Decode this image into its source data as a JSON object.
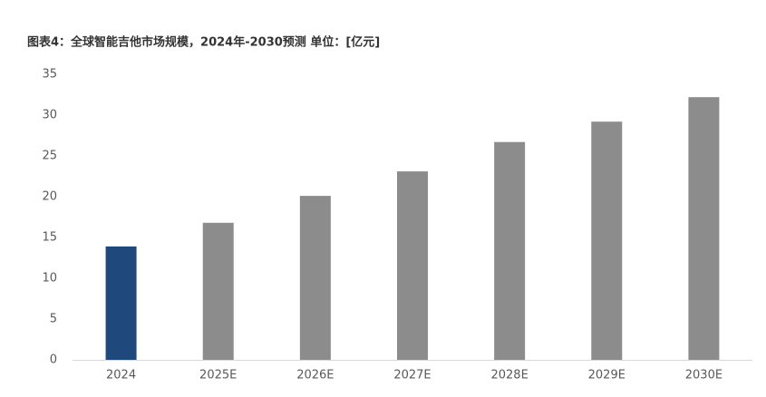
{
  "chart_data": {
    "type": "bar",
    "title": "图表4：全球智能吉他市场规模，2024年-2030预测 单位：[亿元]",
    "categories": [
      "2024",
      "2025E",
      "2026E",
      "2027E",
      "2028E",
      "2029E",
      "2030E"
    ],
    "values": [
      13.9,
      16.8,
      20.1,
      23.1,
      26.7,
      29.2,
      32.2
    ],
    "colors": [
      "#1f497d",
      "#8c8c8c",
      "#8c8c8c",
      "#8c8c8c",
      "#8c8c8c",
      "#8c8c8c",
      "#8c8c8c"
    ],
    "ylim": [
      0,
      35
    ],
    "yticks": [
      0,
      5,
      10,
      15,
      20,
      25,
      30,
      35
    ],
    "grid": false
  }
}
